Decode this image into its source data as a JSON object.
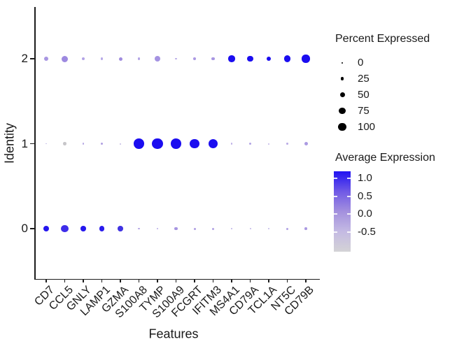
{
  "chart_data": {
    "type": "scatter",
    "subtype": "dot-plot",
    "title": "",
    "xlabel": "Features",
    "ylabel": "Identity",
    "x_categories": [
      "CD7",
      "CCL5",
      "GNLY",
      "LAMP1",
      "GZMA",
      "S100A8",
      "TYMP",
      "S100A9",
      "FCGRT",
      "IFITM3",
      "MS4A1",
      "CD79A",
      "TCL1A",
      "NT5C",
      "CD79B"
    ],
    "y_categories": [
      "0",
      "1",
      "2"
    ],
    "grid": false,
    "legend_position": "right",
    "series": [
      {
        "identity": "0",
        "dots": [
          {
            "gene": "CD7",
            "pct": 28,
            "avg": 1.0,
            "d": 8,
            "color": "#2416ee"
          },
          {
            "gene": "CCL5",
            "pct": 50,
            "avg": 0.9,
            "d": 10.5,
            "color": "#3e2dea"
          },
          {
            "gene": "GNLY",
            "pct": 24,
            "avg": 1.0,
            "d": 7.5,
            "color": "#2517ee"
          },
          {
            "gene": "LAMP1",
            "pct": 24,
            "avg": 1.0,
            "d": 7.5,
            "color": "#2a1bed"
          },
          {
            "gene": "GZMA",
            "pct": 24,
            "avg": 0.85,
            "d": 7.5,
            "color": "#4033e2"
          },
          {
            "gene": "S100A8",
            "pct": 3,
            "avg": -0.1,
            "d": 2.5,
            "color": "#b3a5e5"
          },
          {
            "gene": "TYMP",
            "pct": 2,
            "avg": -0.15,
            "d": 2,
            "color": "#b8abe6"
          },
          {
            "gene": "S100A9",
            "pct": 8,
            "avg": 0.0,
            "d": 4.5,
            "color": "#a695e1"
          },
          {
            "gene": "FCGRT",
            "pct": 4,
            "avg": -0.05,
            "d": 3,
            "color": "#ae9de3"
          },
          {
            "gene": "IFITM3",
            "pct": 4,
            "avg": -0.1,
            "d": 3,
            "color": "#b2a3e4"
          },
          {
            "gene": "MS4A1",
            "pct": 2,
            "avg": -0.2,
            "d": 2,
            "color": "#bcb0e7"
          },
          {
            "gene": "CD79A",
            "pct": 2,
            "avg": -0.2,
            "d": 2,
            "color": "#beb3e8"
          },
          {
            "gene": "TCL1A",
            "pct": 2,
            "avg": -0.25,
            "d": 2,
            "color": "#c0b6e9"
          },
          {
            "gene": "NT5C",
            "pct": 4,
            "avg": -0.1,
            "d": 3,
            "color": "#b1a2e4"
          },
          {
            "gene": "CD79B",
            "pct": 5,
            "avg": 0.0,
            "d": 3.5,
            "color": "#ab9ae2"
          }
        ]
      },
      {
        "identity": "1",
        "dots": [
          {
            "gene": "CD7",
            "pct": 1,
            "avg": -0.3,
            "d": 1.8,
            "color": "#c4bbe6"
          },
          {
            "gene": "CCL5",
            "pct": 10,
            "avg": -0.6,
            "d": 4.7,
            "color": "#c7c6c9"
          },
          {
            "gene": "GNLY",
            "pct": 2,
            "avg": -0.15,
            "d": 2.3,
            "color": "#b7a9e3"
          },
          {
            "gene": "LAMP1",
            "pct": 3,
            "avg": -0.1,
            "d": 2.7,
            "color": "#b2a2e2"
          },
          {
            "gene": "GZMA",
            "pct": 2,
            "avg": -0.3,
            "d": 2,
            "color": "#c4bce5"
          },
          {
            "gene": "S100A8",
            "pct": 96,
            "avg": 1.1,
            "d": 14.7,
            "color": "#1b0df0"
          },
          {
            "gene": "TYMP",
            "pct": 100,
            "avg": 1.1,
            "d": 15.3,
            "color": "#1b0df0"
          },
          {
            "gene": "S100A9",
            "pct": 96,
            "avg": 1.1,
            "d": 14.7,
            "color": "#1b0df0"
          },
          {
            "gene": "FCGRT",
            "pct": 80,
            "avg": 1.1,
            "d": 13.3,
            "color": "#1b0df0"
          },
          {
            "gene": "IFITM3",
            "pct": 75,
            "avg": 1.1,
            "d": 13,
            "color": "#1b0df0"
          },
          {
            "gene": "MS4A1",
            "pct": 2,
            "avg": -0.2,
            "d": 2.3,
            "color": "#beb2e8"
          },
          {
            "gene": "CD79A",
            "pct": 6,
            "avg": -0.1,
            "d": 3.7,
            "color": "#b2a4e4"
          },
          {
            "gene": "TCL1A",
            "pct": 2,
            "avg": -0.25,
            "d": 2,
            "color": "#c0b5e8"
          },
          {
            "gene": "NT5C",
            "pct": 3,
            "avg": -0.15,
            "d": 2.7,
            "color": "#b9abe5"
          },
          {
            "gene": "CD79B",
            "pct": 11,
            "avg": 0.0,
            "d": 5,
            "color": "#ab9ae2"
          }
        ]
      },
      {
        "identity": "2",
        "dots": [
          {
            "gene": "CD7",
            "pct": 20,
            "avg": 0.05,
            "d": 6.7,
            "color": "#a896e2"
          },
          {
            "gene": "CCL5",
            "pct": 36,
            "avg": 0.15,
            "d": 9,
            "color": "#9d89e0"
          },
          {
            "gene": "GNLY",
            "pct": 8,
            "avg": -0.1,
            "d": 4.3,
            "color": "#b3a3e6"
          },
          {
            "gene": "LAMP1",
            "pct": 5,
            "avg": -0.15,
            "d": 3.3,
            "color": "#b8aae8"
          },
          {
            "gene": "GZMA",
            "pct": 11,
            "avg": 0.1,
            "d": 5,
            "color": "#a08cdf"
          },
          {
            "gene": "S100A8",
            "pct": 6,
            "avg": -0.1,
            "d": 3.7,
            "color": "#b4a5e6"
          },
          {
            "gene": "TYMP",
            "pct": 31,
            "avg": 0.05,
            "d": 8.3,
            "color": "#a593e2"
          },
          {
            "gene": "S100A9",
            "pct": 3,
            "avg": -0.15,
            "d": 2.7,
            "color": "#b8aae8"
          },
          {
            "gene": "FCGRT",
            "pct": 6,
            "avg": 0.0,
            "d": 3.7,
            "color": "#ab99e3"
          },
          {
            "gene": "IFITM3",
            "pct": 8,
            "avg": 0.05,
            "d": 4.3,
            "color": "#a896e2"
          },
          {
            "gene": "MS4A1",
            "pct": 38,
            "avg": 1.1,
            "d": 9.3,
            "color": "#1b0df0"
          },
          {
            "gene": "CD79A",
            "pct": 34,
            "avg": 1.1,
            "d": 8.7,
            "color": "#1b0df0"
          },
          {
            "gene": "TCL1A",
            "pct": 20,
            "avg": 1.1,
            "d": 6.7,
            "color": "#1b0df0"
          },
          {
            "gene": "NT5C",
            "pct": 38,
            "avg": 1.1,
            "d": 9.3,
            "color": "#1b0df0"
          },
          {
            "gene": "CD79B",
            "pct": 57,
            "avg": 1.1,
            "d": 11.3,
            "color": "#1b0df0"
          }
        ]
      }
    ]
  },
  "percent_legend": {
    "title": "Percent Expressed",
    "dot_color": "#000000",
    "items": [
      {
        "label": "0",
        "d": 2
      },
      {
        "label": "25",
        "d": 4.5
      },
      {
        "label": "50",
        "d": 7
      },
      {
        "label": "75",
        "d": 9.5
      },
      {
        "label": "100",
        "d": 11.5
      }
    ]
  },
  "color_legend": {
    "title": "Average Expression",
    "vmax": 1.2,
    "vmin": -1.05,
    "ticks": [
      1.0,
      0.5,
      0.0,
      -0.5
    ],
    "gradient": [
      "#2012f2",
      "#6f59e6",
      "#a390de",
      "#c4bae3",
      "#d4d3d6"
    ]
  }
}
